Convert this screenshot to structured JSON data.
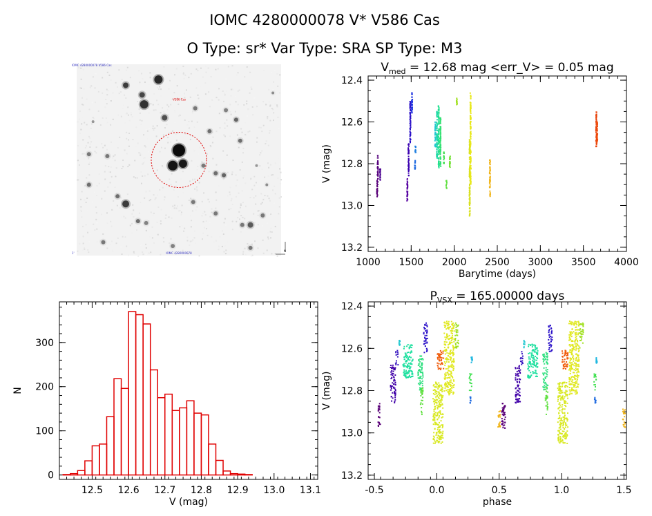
{
  "header": {
    "title": "IOMC 4280000078    V* V586 Cas",
    "subtitle": "O Type: sr*  Var Type: SRA  SP Type: M3"
  },
  "image_panel": {
    "top_left_label": "IOMC 4280000078 V586 Cas",
    "target_label": "V586 Cas",
    "bottom_left_label": "1'",
    "bottom_center_label": "IOMC 4280000078",
    "bottom_right_label": "N"
  },
  "chart_data": [
    {
      "type": "scatter",
      "title": "V_med = 12.68 mag <err_V> = 0.05 mag",
      "title_parts": {
        "v": "V",
        "sub": "med",
        "rest": " = 12.68 mag <err_V> = 0.05 mag"
      },
      "xlabel": "Barytime (days)",
      "ylabel": "V (mag)",
      "xlim": [
        1000,
        4000
      ],
      "ylim": [
        13.22,
        12.38
      ],
      "y_inverted": true,
      "xticks": [
        1000,
        1500,
        2000,
        2500,
        3000,
        3500,
        4000
      ],
      "yticks": [
        12.4,
        12.6,
        12.8,
        13.0,
        13.2
      ],
      "grid": false,
      "segments": [
        {
          "x": 1105,
          "y_min": 12.87,
          "y_max": 12.96,
          "color": "#5a0078"
        },
        {
          "x": 1112,
          "y_min": 12.76,
          "y_max": 12.9,
          "color": "#55007d"
        },
        {
          "x": 1140,
          "y_min": 12.82,
          "y_max": 12.88,
          "color": "#4a0090"
        },
        {
          "x": 1455,
          "y_min": 12.87,
          "y_max": 12.98,
          "color": "#5500a0"
        },
        {
          "x": 1470,
          "y_min": 12.7,
          "y_max": 12.86,
          "color": "#3a00b0"
        },
        {
          "x": 1490,
          "y_min": 12.5,
          "y_max": 12.7,
          "color": "#2a10c8"
        },
        {
          "x": 1510,
          "y_min": 12.46,
          "y_max": 12.56,
          "color": "#1a30e0"
        },
        {
          "x": 1545,
          "y_min": 12.78,
          "y_max": 12.83,
          "color": "#1f6ae0"
        },
        {
          "x": 1550,
          "y_min": 12.71,
          "y_max": 12.75,
          "color": "#2080e0"
        },
        {
          "x": 1780,
          "y_min": 12.6,
          "y_max": 12.72,
          "color": "#20c8d0"
        },
        {
          "x": 1800,
          "y_min": 12.55,
          "y_max": 12.78,
          "color": "#20d8a8"
        },
        {
          "x": 1820,
          "y_min": 12.52,
          "y_max": 12.82,
          "color": "#20e090"
        },
        {
          "x": 1840,
          "y_min": 12.58,
          "y_max": 12.82,
          "color": "#30e070"
        },
        {
          "x": 1880,
          "y_min": 12.74,
          "y_max": 12.8,
          "color": "#40e050"
        },
        {
          "x": 1910,
          "y_min": 12.88,
          "y_max": 12.92,
          "color": "#60e040"
        },
        {
          "x": 1950,
          "y_min": 12.76,
          "y_max": 12.82,
          "color": "#70e030"
        },
        {
          "x": 2030,
          "y_min": 12.48,
          "y_max": 12.52,
          "color": "#a0e020"
        },
        {
          "x": 2180,
          "y_min": 12.68,
          "y_max": 13.05,
          "color": "#d8e020"
        },
        {
          "x": 2190,
          "y_min": 12.46,
          "y_max": 12.9,
          "color": "#e8e818"
        },
        {
          "x": 2415,
          "y_min": 12.78,
          "y_max": 12.96,
          "color": "#f0b418"
        },
        {
          "x": 3650,
          "y_min": 12.55,
          "y_max": 12.72,
          "color": "#e84008"
        },
        {
          "x": 3660,
          "y_min": 12.6,
          "y_max": 12.7,
          "color": "#f05010"
        }
      ]
    },
    {
      "type": "bar",
      "title": "",
      "xlabel": "V (mag)",
      "ylabel": "N",
      "xlim": [
        12.41,
        13.12
      ],
      "ylim": [
        -10,
        392
      ],
      "xticks": [
        12.5,
        12.6,
        12.7,
        12.8,
        12.9,
        13.0,
        13.1
      ],
      "yticks": [
        0,
        100,
        200,
        300
      ],
      "grid": false,
      "bar_color": "#e00000",
      "bins": [
        {
          "x0": 12.42,
          "x1": 12.44,
          "count": 1
        },
        {
          "x0": 12.44,
          "x1": 12.46,
          "count": 3
        },
        {
          "x0": 12.46,
          "x1": 12.48,
          "count": 10
        },
        {
          "x0": 12.48,
          "x1": 12.5,
          "count": 32
        },
        {
          "x0": 12.5,
          "x1": 12.52,
          "count": 66
        },
        {
          "x0": 12.52,
          "x1": 12.54,
          "count": 70
        },
        {
          "x0": 12.54,
          "x1": 12.56,
          "count": 132
        },
        {
          "x0": 12.56,
          "x1": 12.58,
          "count": 218
        },
        {
          "x0": 12.58,
          "x1": 12.6,
          "count": 196
        },
        {
          "x0": 12.6,
          "x1": 12.62,
          "count": 370
        },
        {
          "x0": 12.62,
          "x1": 12.64,
          "count": 363
        },
        {
          "x0": 12.64,
          "x1": 12.66,
          "count": 342
        },
        {
          "x0": 12.66,
          "x1": 12.68,
          "count": 238
        },
        {
          "x0": 12.68,
          "x1": 12.7,
          "count": 175
        },
        {
          "x0": 12.7,
          "x1": 12.72,
          "count": 183
        },
        {
          "x0": 12.72,
          "x1": 12.74,
          "count": 146
        },
        {
          "x0": 12.74,
          "x1": 12.76,
          "count": 152
        },
        {
          "x0": 12.76,
          "x1": 12.78,
          "count": 168
        },
        {
          "x0": 12.78,
          "x1": 12.8,
          "count": 140
        },
        {
          "x0": 12.8,
          "x1": 12.82,
          "count": 136
        },
        {
          "x0": 12.82,
          "x1": 12.84,
          "count": 70
        },
        {
          "x0": 12.84,
          "x1": 12.86,
          "count": 33
        },
        {
          "x0": 12.86,
          "x1": 12.88,
          "count": 9
        },
        {
          "x0": 12.88,
          "x1": 12.9,
          "count": 3
        },
        {
          "x0": 12.9,
          "x1": 12.92,
          "count": 2
        },
        {
          "x0": 12.92,
          "x1": 12.94,
          "count": 1
        }
      ]
    },
    {
      "type": "scatter",
      "title": "P_VSX = 165.00000 days",
      "title_parts": {
        "p": "P",
        "sub": "VSX",
        "rest": " = 165.00000 days"
      },
      "xlabel": "phase",
      "ylabel": "V (mag)",
      "xlim": [
        -0.55,
        1.52
      ],
      "ylim": [
        13.22,
        12.38
      ],
      "y_inverted": true,
      "xticks": [
        -0.5,
        0.0,
        0.5,
        1.0,
        1.5
      ],
      "yticks": [
        12.4,
        12.6,
        12.8,
        13.0,
        13.2
      ],
      "grid": false,
      "period_days": 165.0,
      "clusters": [
        {
          "phase": -0.46,
          "y_min": 12.86,
          "y_max": 12.98,
          "width": 0.02,
          "color": "#5a0078"
        },
        {
          "phase": -0.35,
          "y_min": 12.68,
          "y_max": 12.86,
          "width": 0.04,
          "color": "#4000a8"
        },
        {
          "phase": -0.32,
          "y_min": 12.61,
          "y_max": 12.68,
          "width": 0.02,
          "color": "#3818c0"
        },
        {
          "phase": -0.3,
          "y_min": 12.56,
          "y_max": 12.6,
          "width": 0.01,
          "color": "#20c8d0"
        },
        {
          "phase": -0.23,
          "y_min": 12.58,
          "y_max": 12.74,
          "width": 0.08,
          "color": "#20e0a0"
        },
        {
          "phase": -0.13,
          "y_min": 12.62,
          "y_max": 12.8,
          "width": 0.04,
          "color": "#30e080"
        },
        {
          "phase": -0.12,
          "y_min": 12.78,
          "y_max": 12.92,
          "width": 0.02,
          "color": "#60e040"
        },
        {
          "phase": -0.09,
          "y_min": 12.48,
          "y_max": 12.62,
          "width": 0.03,
          "color": "#2a10c8"
        },
        {
          "phase": 0.01,
          "y_min": 12.76,
          "y_max": 13.05,
          "width": 0.08,
          "color": "#d8e820"
        },
        {
          "phase": 0.03,
          "y_min": 12.61,
          "y_max": 12.7,
          "width": 0.05,
          "color": "#f05a08"
        },
        {
          "phase": 0.1,
          "y_min": 12.47,
          "y_max": 12.82,
          "width": 0.08,
          "color": "#e0e820"
        },
        {
          "phase": 0.16,
          "y_min": 12.48,
          "y_max": 12.6,
          "width": 0.03,
          "color": "#a0e020"
        },
        {
          "phase": 0.27,
          "y_min": 12.72,
          "y_max": 12.8,
          "width": 0.02,
          "color": "#40e050"
        },
        {
          "phase": 0.28,
          "y_min": 12.64,
          "y_max": 12.67,
          "width": 0.01,
          "color": "#20b8e0"
        },
        {
          "phase": 0.27,
          "y_min": 12.83,
          "y_max": 12.86,
          "width": 0.01,
          "color": "#1f6ae0"
        },
        {
          "phase": 0.53,
          "y_min": 12.86,
          "y_max": 12.98,
          "width": 0.02,
          "color": "#5a0078"
        },
        {
          "phase": 0.5,
          "y_min": 12.88,
          "y_max": 12.98,
          "width": 0.02,
          "color": "#f0b418"
        }
      ]
    }
  ]
}
